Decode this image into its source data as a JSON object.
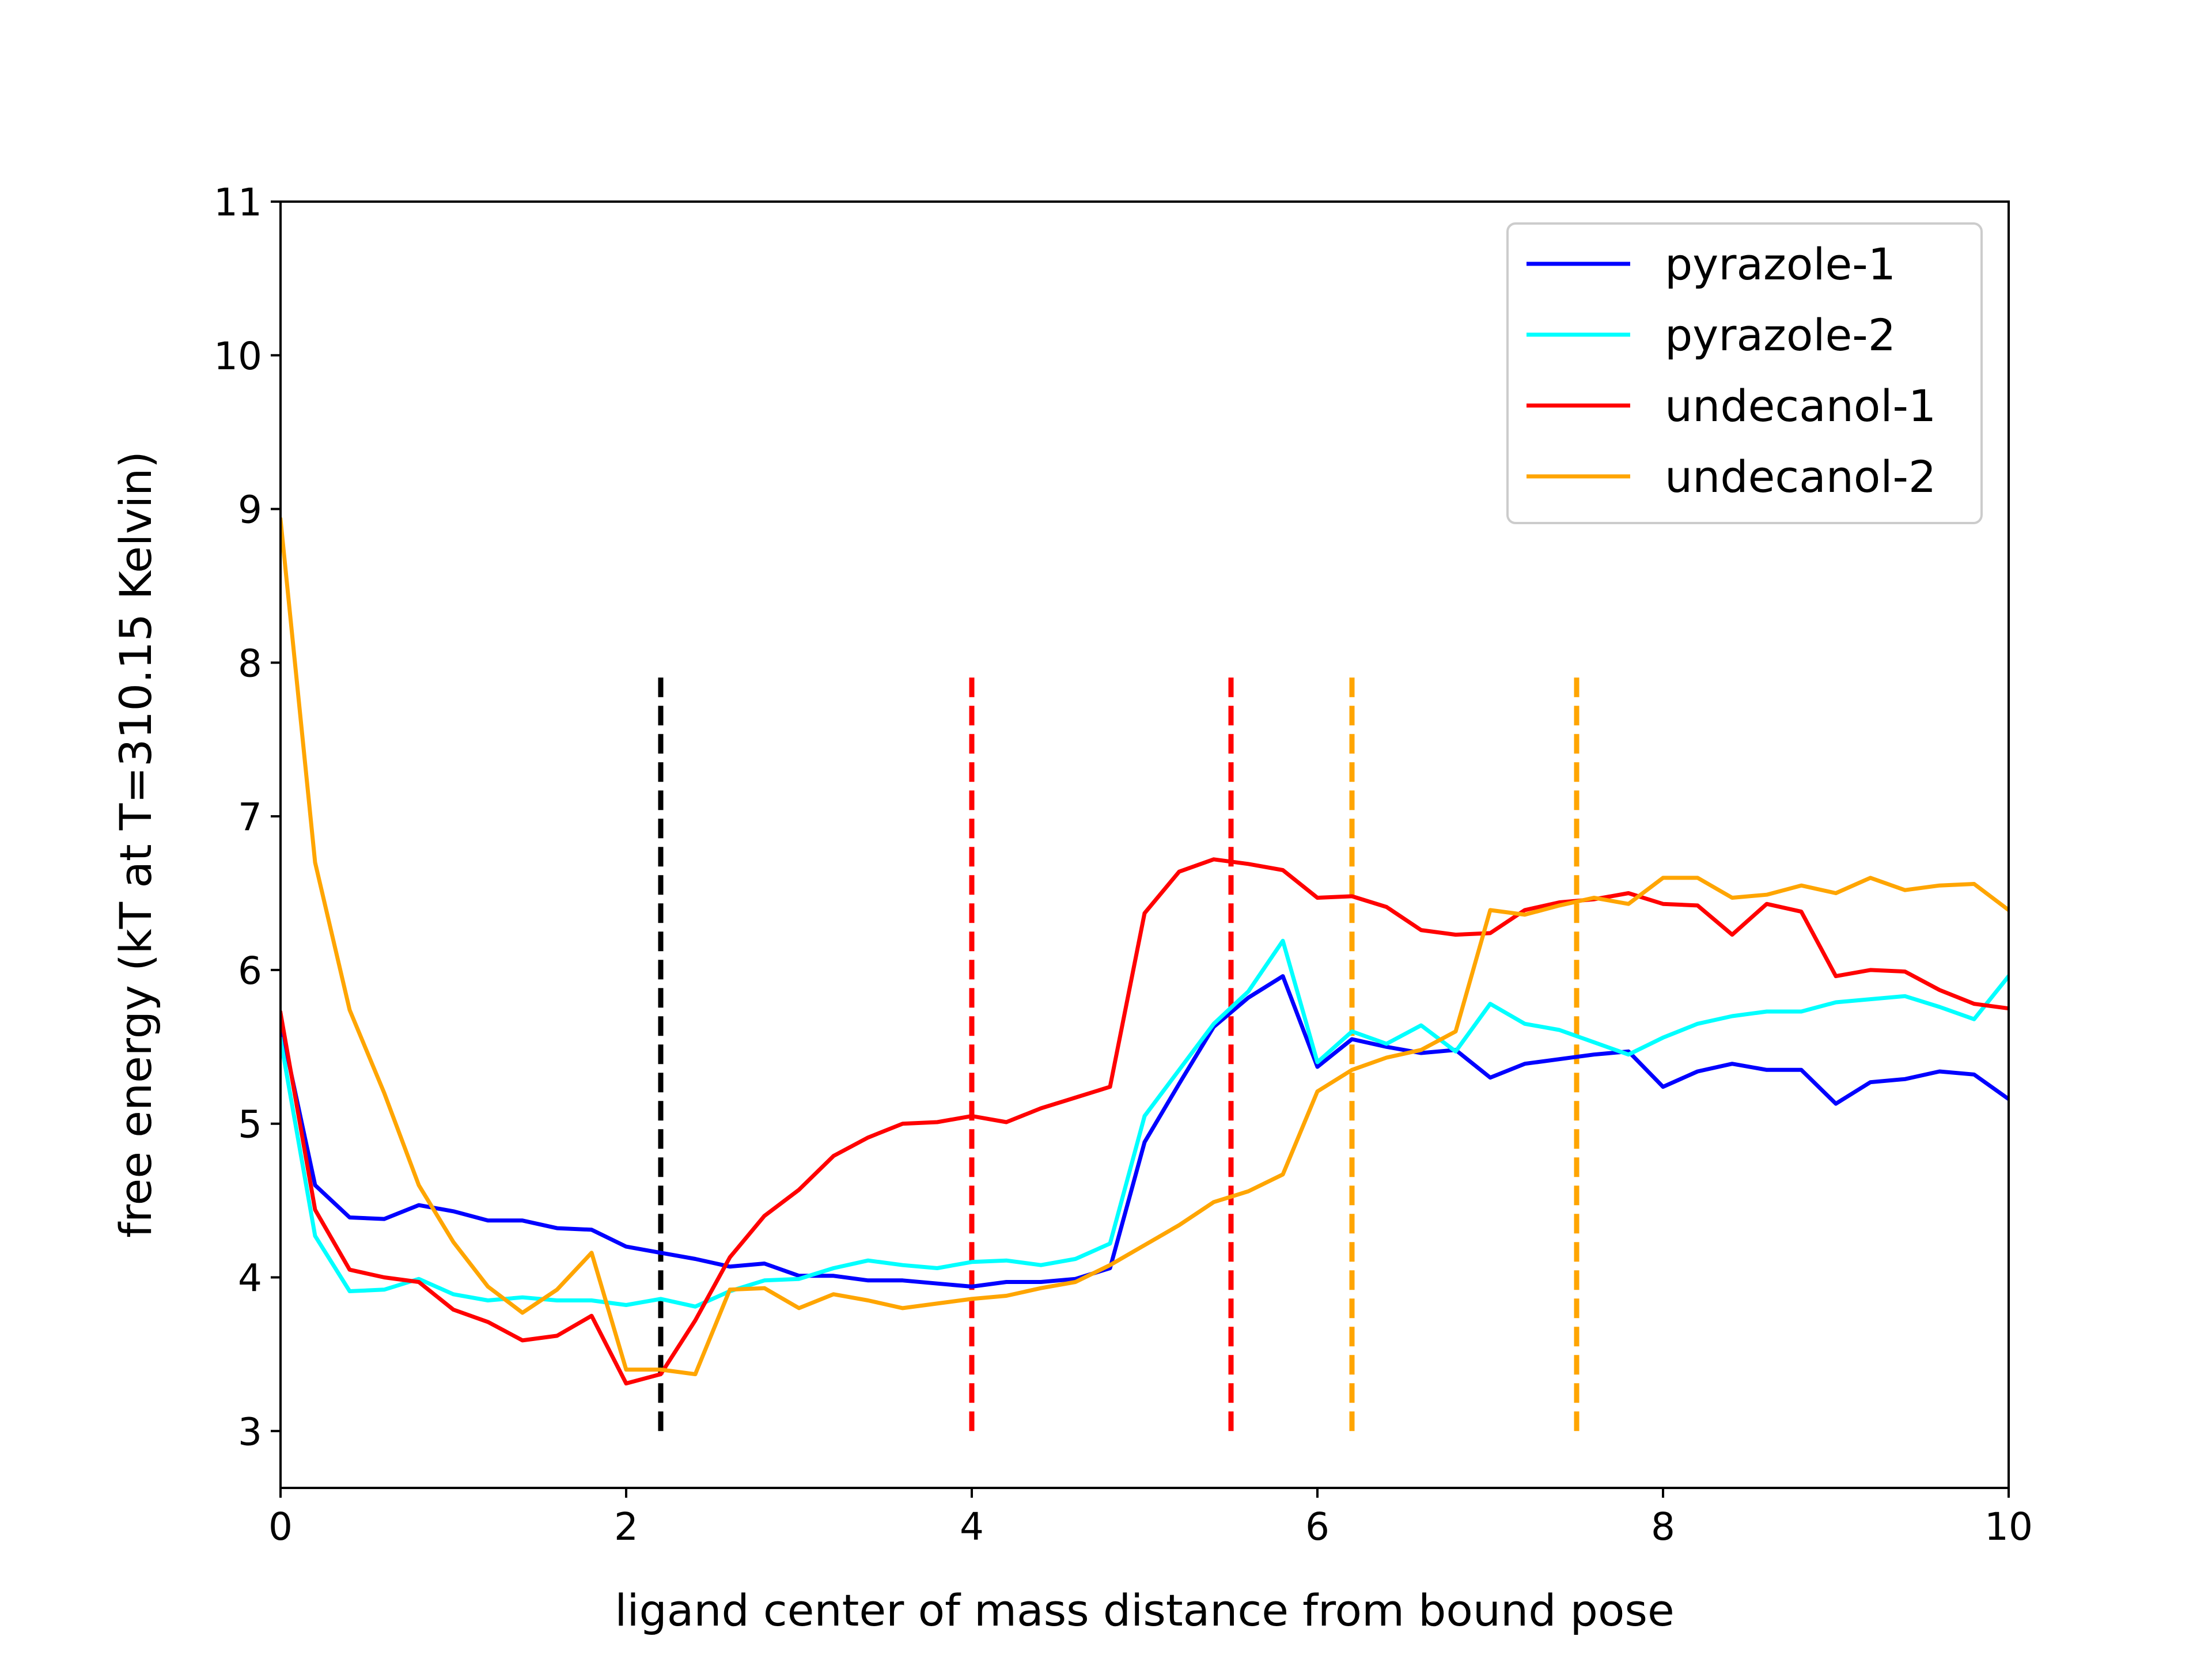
{
  "chart_data": {
    "type": "line",
    "title": "",
    "xlabel": "ligand center of mass distance from bound pose",
    "ylabel": "free energy (kT at T=310.15 Kelvin)",
    "xlim": [
      0,
      10
    ],
    "ylim": [
      2.63,
      11.0
    ],
    "xticks": [
      0,
      2,
      4,
      6,
      8,
      10
    ],
    "yticks": [
      3,
      4,
      5,
      6,
      7,
      8,
      9,
      10,
      11
    ],
    "xtick_labels": [
      "0",
      "2",
      "4",
      "6",
      "8",
      "10"
    ],
    "ytick_labels": [
      "3",
      "4",
      "5",
      "6",
      "7",
      "8",
      "9",
      "10",
      "11"
    ],
    "grid": false,
    "legend_position": "top-right",
    "x": [
      0,
      0.2,
      0.4,
      0.6,
      0.8,
      1.0,
      1.2,
      1.4,
      1.6,
      1.8,
      2.0,
      2.2,
      2.4,
      2.6,
      2.8,
      3.0,
      3.2,
      3.4,
      3.6,
      3.8,
      4.0,
      4.2,
      4.4,
      4.6,
      4.8,
      5.0,
      5.2,
      5.4,
      5.6,
      5.8,
      6.0,
      6.2,
      6.4,
      6.6,
      6.8,
      7.0,
      7.2,
      7.4,
      7.6,
      7.8,
      8.0,
      8.2,
      8.4,
      8.6,
      8.8,
      9.0,
      9.2,
      9.4,
      9.6,
      9.8,
      10.0
    ],
    "series": [
      {
        "name": "pyrazole-1",
        "color": "#0000ff",
        "values": [
          5.65,
          4.6,
          4.39,
          4.38,
          4.47,
          4.43,
          4.37,
          4.37,
          4.32,
          4.31,
          4.2,
          4.16,
          4.12,
          4.07,
          4.09,
          4.01,
          4.01,
          3.98,
          3.98,
          3.96,
          3.94,
          3.97,
          3.97,
          3.99,
          4.06,
          4.88,
          5.26,
          5.63,
          5.82,
          5.96,
          5.37,
          5.55,
          5.5,
          5.46,
          5.48,
          5.3,
          5.39,
          5.42,
          5.45,
          5.47,
          5.24,
          5.34,
          5.39,
          5.35,
          5.35,
          5.13,
          5.27,
          5.29,
          5.34,
          5.32,
          5.16
        ]
      },
      {
        "name": "pyrazole-2",
        "color": "#00ffff",
        "values": [
          5.55,
          4.27,
          3.91,
          3.92,
          3.99,
          3.89,
          3.85,
          3.87,
          3.85,
          3.85,
          3.82,
          3.86,
          3.81,
          3.91,
          3.98,
          3.99,
          4.06,
          4.11,
          4.08,
          4.06,
          4.1,
          4.11,
          4.08,
          4.12,
          4.22,
          5.05,
          5.35,
          5.65,
          5.86,
          6.19,
          5.4,
          5.6,
          5.52,
          5.64,
          5.47,
          5.78,
          5.65,
          5.61,
          5.53,
          5.45,
          5.56,
          5.65,
          5.7,
          5.73,
          5.73,
          5.79,
          5.81,
          5.83,
          5.76,
          5.68,
          5.96
        ]
      },
      {
        "name": "undecanol-1",
        "color": "#ff0000",
        "values": [
          5.72,
          4.44,
          4.05,
          4.0,
          3.97,
          3.79,
          3.71,
          3.59,
          3.62,
          3.75,
          3.31,
          3.37,
          3.72,
          4.13,
          4.4,
          4.57,
          4.79,
          4.91,
          5.0,
          5.01,
          5.05,
          5.01,
          5.1,
          5.17,
          5.24,
          6.37,
          6.64,
          6.72,
          6.69,
          6.65,
          6.47,
          6.48,
          6.41,
          6.26,
          6.23,
          6.24,
          6.39,
          6.44,
          6.46,
          6.5,
          6.43,
          6.42,
          6.23,
          6.43,
          6.38,
          5.96,
          6.0,
          5.99,
          5.87,
          5.78,
          5.75
        ]
      },
      {
        "name": "undecanol-2",
        "color": "#ffa500",
        "values": [
          8.93,
          6.7,
          5.74,
          5.2,
          4.6,
          4.23,
          3.94,
          3.77,
          3.92,
          4.16,
          3.4,
          3.4,
          3.37,
          3.92,
          3.93,
          3.8,
          3.89,
          3.85,
          3.8,
          3.83,
          3.86,
          3.88,
          3.93,
          3.97,
          4.08,
          4.21,
          4.34,
          4.49,
          4.56,
          4.67,
          5.21,
          5.35,
          5.43,
          5.48,
          5.6,
          6.39,
          6.36,
          6.42,
          6.47,
          6.43,
          6.6,
          6.6,
          6.47,
          6.49,
          6.55,
          6.5,
          6.6,
          6.52,
          6.55,
          6.56,
          6.39
        ]
      }
    ],
    "vlines": [
      {
        "x": 2.2,
        "y_from": 3.0,
        "y_to": 7.95,
        "color": "#000000",
        "style": "dashed"
      },
      {
        "x": 4.0,
        "y_from": 3.0,
        "y_to": 7.95,
        "color": "#ff0000",
        "style": "dashed"
      },
      {
        "x": 5.5,
        "y_from": 3.0,
        "y_to": 7.95,
        "color": "#ff0000",
        "style": "dashed"
      },
      {
        "x": 6.2,
        "y_from": 3.0,
        "y_to": 7.95,
        "color": "#ffa500",
        "style": "dashed"
      },
      {
        "x": 7.5,
        "y_from": 3.0,
        "y_to": 7.95,
        "color": "#ffa500",
        "style": "dashed"
      }
    ]
  }
}
